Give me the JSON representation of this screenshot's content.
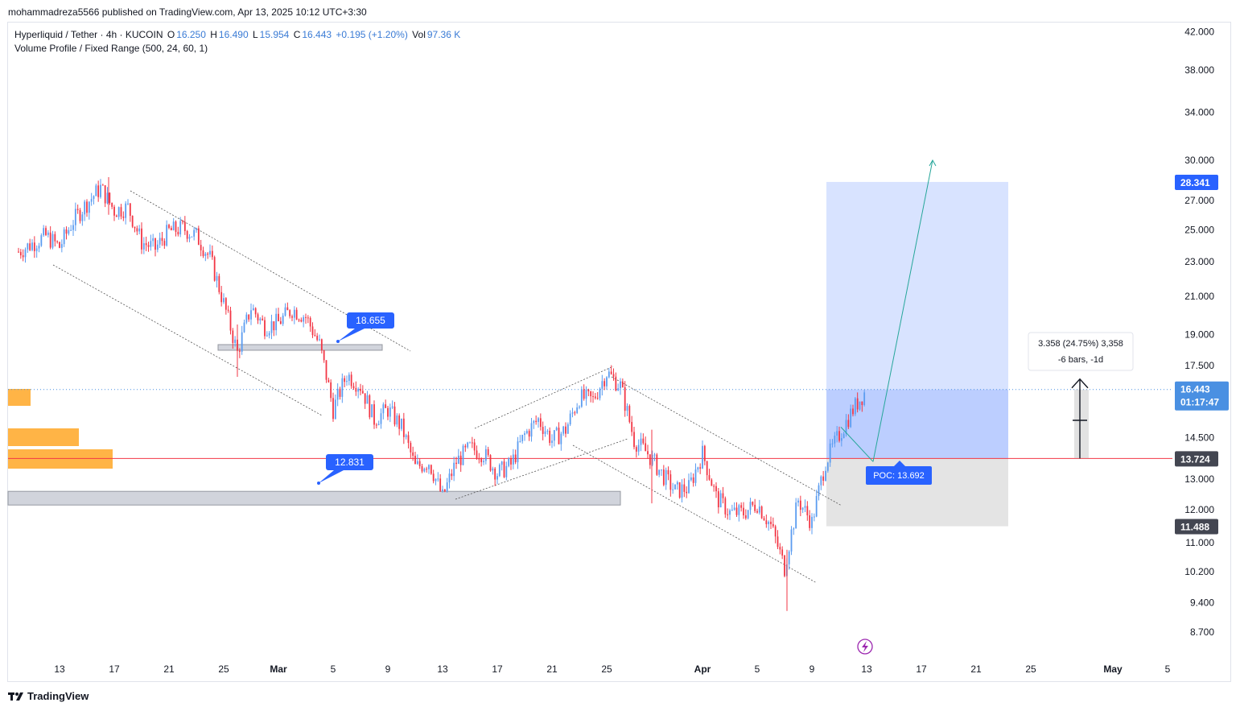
{
  "header": {
    "published_by": "mohammadreza5566 published on TradingView.com, Apr 13, 2025 10:12 UTC+3:30"
  },
  "legend": {
    "symbol": "Hyperliquid / Tether · 4h · KUCOIN",
    "open_label": "O",
    "open": "16.250",
    "high_label": "H",
    "high": "16.490",
    "low_label": "L",
    "low": "15.954",
    "close_label": "C",
    "close": "16.443",
    "change": "+0.195 (+1.20%)",
    "vol_label": "Vol",
    "vol": "97.36 K",
    "indicator": "Volume Profile / Fixed Range (500, 24, 60, 1)"
  },
  "footer": {
    "brand": "TradingView"
  },
  "annotations": {
    "resistance_label": "18.655",
    "support_label": "12.831",
    "poc_label": "POC: 13.692",
    "measure_line1": "3.358 (24.75%) 3,358",
    "measure_line2": "-6 bars, -1d"
  },
  "price_badges": {
    "target": "28.341",
    "last_price": "16.443",
    "countdown": "01:17:47",
    "entry": "13.724",
    "stop": "11.488"
  },
  "colors": {
    "up": "#5b9cf0",
    "down": "#f23645",
    "target_zone": "#2962ff",
    "stop_zone": "#9e9e9e",
    "poc_line": "#f23645",
    "volume_profile": "#ffa726",
    "badge_blue": "#2962ff",
    "badge_dark": "#434651"
  },
  "chart_data": {
    "type": "candlestick",
    "symbol": "Hyperliquid / Tether",
    "timeframe": "4h",
    "exchange": "KUCOIN",
    "y_axis": {
      "scale": "log",
      "ticks": [
        "42.000",
        "38.000",
        "34.000",
        "30.000",
        "27.000",
        "25.000",
        "23.000",
        "21.000",
        "19.000",
        "17.500",
        "14.500",
        "13.000",
        "12.000",
        "11.000",
        "10.200",
        "9.400",
        "8.700"
      ]
    },
    "x_axis": {
      "ticks": [
        "13",
        "17",
        "21",
        "25",
        "Mar",
        "5",
        "9",
        "13",
        "17",
        "21",
        "25",
        "Apr",
        "5",
        "9",
        "13",
        "17",
        "21",
        "25",
        "May",
        "5"
      ]
    },
    "close_path": [
      [
        "Feb 10",
        23.6
      ],
      [
        "Feb 12",
        24.6
      ],
      [
        "Feb 13",
        23.9
      ],
      [
        "Feb 14",
        25.6
      ],
      [
        "Feb 15",
        26.8
      ],
      [
        "Feb 16",
        27.9
      ],
      [
        "Feb 17",
        26.3
      ],
      [
        "Feb 18",
        26.5
      ],
      [
        "Feb 19",
        24.2
      ],
      [
        "Feb 20",
        23.8
      ],
      [
        "Feb 21",
        24.9
      ],
      [
        "Feb 22",
        25.1
      ],
      [
        "Feb 23",
        24.6
      ],
      [
        "Feb 24",
        23.2
      ],
      [
        "Feb 25",
        20.6
      ],
      [
        "Feb 26",
        18.1
      ],
      [
        "Feb 27",
        20.4
      ],
      [
        "Feb 28",
        19.4
      ],
      [
        "Mar 1",
        19.6
      ],
      [
        "Mar 2",
        20.3
      ],
      [
        "Mar 3",
        19.9
      ],
      [
        "Mar 4",
        18.5
      ],
      [
        "Mar 5",
        15.6
      ],
      [
        "Mar 6",
        17.1
      ],
      [
        "Mar 7",
        16.6
      ],
      [
        "Mar 8",
        15.2
      ],
      [
        "Mar 9",
        15.6
      ],
      [
        "Mar 10",
        14.9
      ],
      [
        "Mar 11",
        13.4
      ],
      [
        "Mar 12",
        13.6
      ],
      [
        "Mar 13",
        12.4
      ],
      [
        "Mar 14",
        13.6
      ],
      [
        "Mar 15",
        14.1
      ],
      [
        "Mar 16",
        13.9
      ],
      [
        "Mar 17",
        13.2
      ],
      [
        "Mar 18",
        13.5
      ],
      [
        "Mar 19",
        14.6
      ],
      [
        "Mar 20",
        15.2
      ],
      [
        "Mar 21",
        14.4
      ],
      [
        "Mar 22",
        14.8
      ],
      [
        "Mar 23",
        16.1
      ],
      [
        "Mar 24",
        16.0
      ],
      [
        "Mar 25",
        17.2
      ],
      [
        "Mar 26",
        16.6
      ],
      [
        "Mar 27",
        14.4
      ],
      [
        "Mar 28",
        13.9
      ],
      [
        "Mar 29",
        13.2
      ],
      [
        "Mar 30",
        12.6
      ],
      [
        "Mar 31",
        12.7
      ],
      [
        "Apr 1",
        13.9
      ],
      [
        "Apr 2",
        12.4
      ],
      [
        "Apr 3",
        11.9
      ],
      [
        "Apr 4",
        11.9
      ],
      [
        "Apr 5",
        12.2
      ],
      [
        "Apr 6",
        11.5
      ],
      [
        "Apr 7",
        10.3
      ],
      [
        "Apr 8",
        12.3
      ],
      [
        "Apr 9",
        11.6
      ],
      [
        "Apr 10",
        13.6
      ],
      [
        "Apr 11",
        14.6
      ],
      [
        "Apr 12",
        15.6
      ],
      [
        "Apr 13",
        16.443
      ]
    ],
    "levels": {
      "resistance_zone": 18.655,
      "support_zone": 12.831,
      "poc": 13.692,
      "entry": 13.724,
      "target": 28.341,
      "stop": 11.488,
      "last": 16.443
    },
    "projection_target": 30.0
  }
}
